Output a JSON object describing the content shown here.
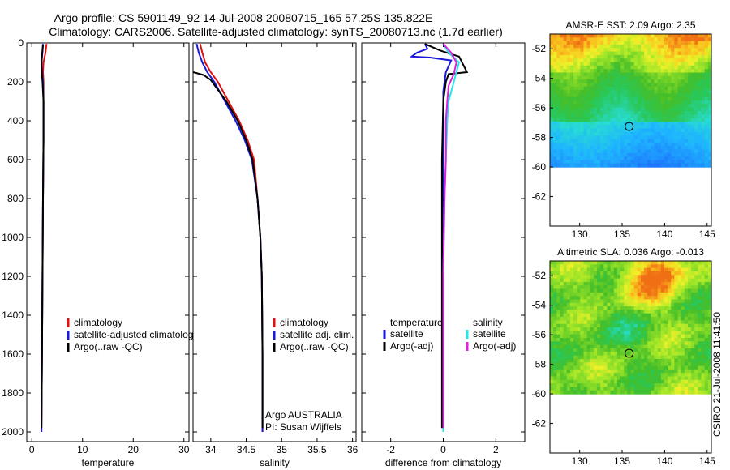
{
  "header": {
    "line1": "Argo profile: CS 5901149_92 14-Jul-2008 20080715_165 57.25S 135.822E",
    "line2": "Climatology: CARS2006. Satellite-adjusted climatology: synTS_20080713.nc (1.7d earlier)"
  },
  "footer": {
    "vertical_stamp": "CSIRO 21-Jul-2008 11:41:50"
  },
  "colors": {
    "red": "#e01010",
    "blue": "#1818d8",
    "black": "#000000",
    "cyan": "#20e8e8",
    "magenta": "#e020e0"
  },
  "chart_data": [
    {
      "id": "temperature",
      "type": "line",
      "xlabel": "temperature",
      "xlim": [
        -1,
        31
      ],
      "ylim": [
        2050,
        0
      ],
      "xticks": [
        "0",
        "10",
        "20",
        "30"
      ],
      "yticks": [
        "0",
        "200",
        "400",
        "600",
        "800",
        "1000",
        "1200",
        "1400",
        "1600",
        "1800",
        "2000"
      ],
      "legend": {
        "position": "center-right",
        "entries": [
          {
            "label": "climatology",
            "color": "#e01010"
          },
          {
            "label": "satellite-adjusted climatology",
            "color": "#1818d8"
          },
          {
            "label": "Argo(..raw -QC)",
            "color": "#000000"
          }
        ]
      },
      "series": [
        {
          "name": "climatology",
          "color": "#e01010",
          "points": [
            [
              2.9,
              5
            ],
            [
              2.7,
              50
            ],
            [
              2.3,
              100
            ],
            [
              2.2,
              150
            ],
            [
              2.3,
              200
            ],
            [
              2.3,
              300
            ],
            [
              2.3,
              500
            ],
            [
              2.2,
              800
            ],
            [
              2.1,
              1200
            ],
            [
              2.0,
              1600
            ],
            [
              1.9,
              2000
            ]
          ]
        },
        {
          "name": "satellite-adjusted climatology",
          "color": "#1818d8",
          "points": [
            [
              2.2,
              5
            ],
            [
              2.1,
              50
            ],
            [
              1.9,
              100
            ],
            [
              2.0,
              150
            ],
            [
              2.2,
              200
            ],
            [
              2.3,
              300
            ],
            [
              2.3,
              500
            ],
            [
              2.2,
              800
            ],
            [
              2.1,
              1200
            ],
            [
              2.0,
              1600
            ],
            [
              1.9,
              2000
            ]
          ]
        },
        {
          "name": "Argo(..raw -QC)",
          "color": "#000000",
          "points": [
            [
              2.2,
              10
            ],
            [
              2.0,
              60
            ],
            [
              1.9,
              120
            ],
            [
              2.1,
              200
            ],
            [
              2.3,
              300
            ],
            [
              2.3,
              500
            ],
            [
              2.2,
              800
            ],
            [
              2.1,
              1200
            ],
            [
              2.0,
              1600
            ],
            [
              1.9,
              1980
            ]
          ]
        }
      ]
    },
    {
      "id": "salinity",
      "type": "line",
      "xlabel": "salinity",
      "xlim": [
        33.75,
        36.05
      ],
      "ylim": [
        2050,
        0
      ],
      "xticks": [
        "34",
        "34.5",
        "35",
        "35.5",
        "36"
      ],
      "legend": {
        "position": "center-right",
        "entries": [
          {
            "label": "climatology",
            "color": "#e01010"
          },
          {
            "label": "satellite adj. clim.",
            "color": "#1818d8"
          },
          {
            "label": "Argo(..raw -QC)",
            "color": "#000000"
          }
        ]
      },
      "annotation": [
        "Argo AUSTRALIA",
        "PI: Susan Wijffels"
      ],
      "series": [
        {
          "name": "climatology",
          "color": "#e01010",
          "points": [
            [
              33.85,
              5
            ],
            [
              33.88,
              50
            ],
            [
              33.92,
              100
            ],
            [
              34.0,
              150
            ],
            [
              34.1,
              200
            ],
            [
              34.25,
              300
            ],
            [
              34.4,
              400
            ],
            [
              34.52,
              500
            ],
            [
              34.61,
              600
            ],
            [
              34.66,
              800
            ],
            [
              34.7,
              1000
            ],
            [
              34.72,
              1200
            ],
            [
              34.73,
              1600
            ],
            [
              34.73,
              2000
            ]
          ]
        },
        {
          "name": "satellite adj. clim.",
          "color": "#1818d8",
          "points": [
            [
              33.8,
              5
            ],
            [
              33.83,
              50
            ],
            [
              33.88,
              100
            ],
            [
              33.95,
              150
            ],
            [
              34.05,
              200
            ],
            [
              34.2,
              300
            ],
            [
              34.35,
              400
            ],
            [
              34.48,
              500
            ],
            [
              34.58,
              600
            ],
            [
              34.66,
              800
            ],
            [
              34.7,
              1000
            ],
            [
              34.72,
              1200
            ],
            [
              34.73,
              1600
            ],
            [
              34.73,
              2000
            ]
          ]
        },
        {
          "name": "Argo(..raw -QC)",
          "color": "#000000",
          "points": [
            [
              33.75,
              150
            ],
            [
              33.9,
              165
            ],
            [
              34.0,
              190
            ],
            [
              34.1,
              240
            ],
            [
              34.22,
              300
            ],
            [
              34.38,
              400
            ],
            [
              34.5,
              500
            ],
            [
              34.59,
              600
            ],
            [
              34.66,
              800
            ],
            [
              34.7,
              1000
            ],
            [
              34.72,
              1200
            ],
            [
              34.73,
              1600
            ],
            [
              34.73,
              1980
            ]
          ]
        }
      ]
    },
    {
      "id": "difference",
      "type": "line",
      "xlabel": "difference from climatology",
      "xlim": [
        -3.1,
        3.1
      ],
      "ylim": [
        2050,
        0
      ],
      "xticks": [
        "-2",
        "0",
        "2"
      ],
      "legend": {
        "position": "center",
        "temperature_title": "temperature",
        "salinity_title": "salinity",
        "entries": [
          {
            "group": "temperature",
            "label": "satellite",
            "color": "#1818d8"
          },
          {
            "group": "temperature",
            "label": "Argo(-adj)",
            "color": "#000000"
          },
          {
            "group": "salinity",
            "label": "satellite",
            "color": "#20e8e8"
          },
          {
            "group": "salinity",
            "label": "Argo(-adj)",
            "color": "#e020e0"
          }
        ]
      },
      "series": [
        {
          "name": "temperature satellite",
          "color": "#1818d8",
          "points": [
            [
              -0.7,
              5
            ],
            [
              -0.6,
              30
            ],
            [
              -1.0,
              50
            ],
            [
              -1.2,
              70
            ],
            [
              -0.5,
              75
            ],
            [
              0.3,
              90
            ],
            [
              0.1,
              150
            ],
            [
              0.0,
              250
            ],
            [
              0.0,
              400
            ],
            [
              0.0,
              800
            ],
            [
              0.0,
              1200
            ],
            [
              0.0,
              1600
            ],
            [
              0.0,
              2000
            ]
          ]
        },
        {
          "name": "temperature Argo(-adj)",
          "color": "#000000",
          "points": [
            [
              -0.7,
              5
            ],
            [
              -0.1,
              40
            ],
            [
              0.6,
              70
            ],
            [
              0.9,
              150
            ],
            [
              0.2,
              160
            ],
            [
              0.1,
              200
            ],
            [
              0.0,
              300
            ],
            [
              -0.05,
              600
            ],
            [
              -0.05,
              1000
            ],
            [
              -0.05,
              1400
            ],
            [
              -0.05,
              1800
            ],
            [
              -0.05,
              1980
            ]
          ]
        },
        {
          "name": "salinity satellite",
          "color": "#20e8e8",
          "points": [
            [
              0.0,
              5
            ],
            [
              0.2,
              50
            ],
            [
              0.6,
              100
            ],
            [
              0.5,
              150
            ],
            [
              0.4,
              200
            ],
            [
              0.2,
              300
            ],
            [
              0.15,
              400
            ],
            [
              0.1,
              600
            ],
            [
              0.05,
              800
            ],
            [
              0.0,
              1200
            ],
            [
              0.0,
              1600
            ],
            [
              0.0,
              2000
            ]
          ]
        },
        {
          "name": "salinity Argo(-adj)",
          "color": "#e020e0",
          "points": [
            [
              0.0,
              5
            ],
            [
              0.3,
              50
            ],
            [
              0.5,
              100
            ],
            [
              0.4,
              160
            ],
            [
              0.2,
              220
            ],
            [
              0.15,
              300
            ],
            [
              0.1,
              400
            ],
            [
              0.1,
              600
            ],
            [
              0.05,
              800
            ],
            [
              0.0,
              1200
            ],
            [
              0.0,
              1600
            ],
            [
              0.0,
              1980
            ]
          ]
        }
      ]
    },
    {
      "id": "amsre-map",
      "type": "heatmap",
      "title": "AMSR-E SST: 2.09 Argo: 2.35",
      "xlim": [
        126.5,
        145.5
      ],
      "ylim": [
        -64,
        -51
      ],
      "data_lat_range": [
        -60,
        -51
      ],
      "xticks": [
        "130",
        "135",
        "140",
        "145"
      ],
      "yticks": [
        "-52",
        "-54",
        "-56",
        "-58",
        "-60",
        "-62"
      ],
      "marker": {
        "lon": 135.822,
        "lat": -57.25
      }
    },
    {
      "id": "sla-map",
      "type": "heatmap",
      "title": "Altimetric SLA: 0.036 Argo: -0.013",
      "xlim": [
        126.5,
        145.5
      ],
      "ylim": [
        -64,
        -51
      ],
      "data_lat_range": [
        -60,
        -51
      ],
      "xticks": [
        "130",
        "135",
        "140",
        "145"
      ],
      "yticks": [
        "-52",
        "-54",
        "-56",
        "-58",
        "-60",
        "-62"
      ],
      "marker": {
        "lon": 135.822,
        "lat": -57.25
      }
    }
  ]
}
